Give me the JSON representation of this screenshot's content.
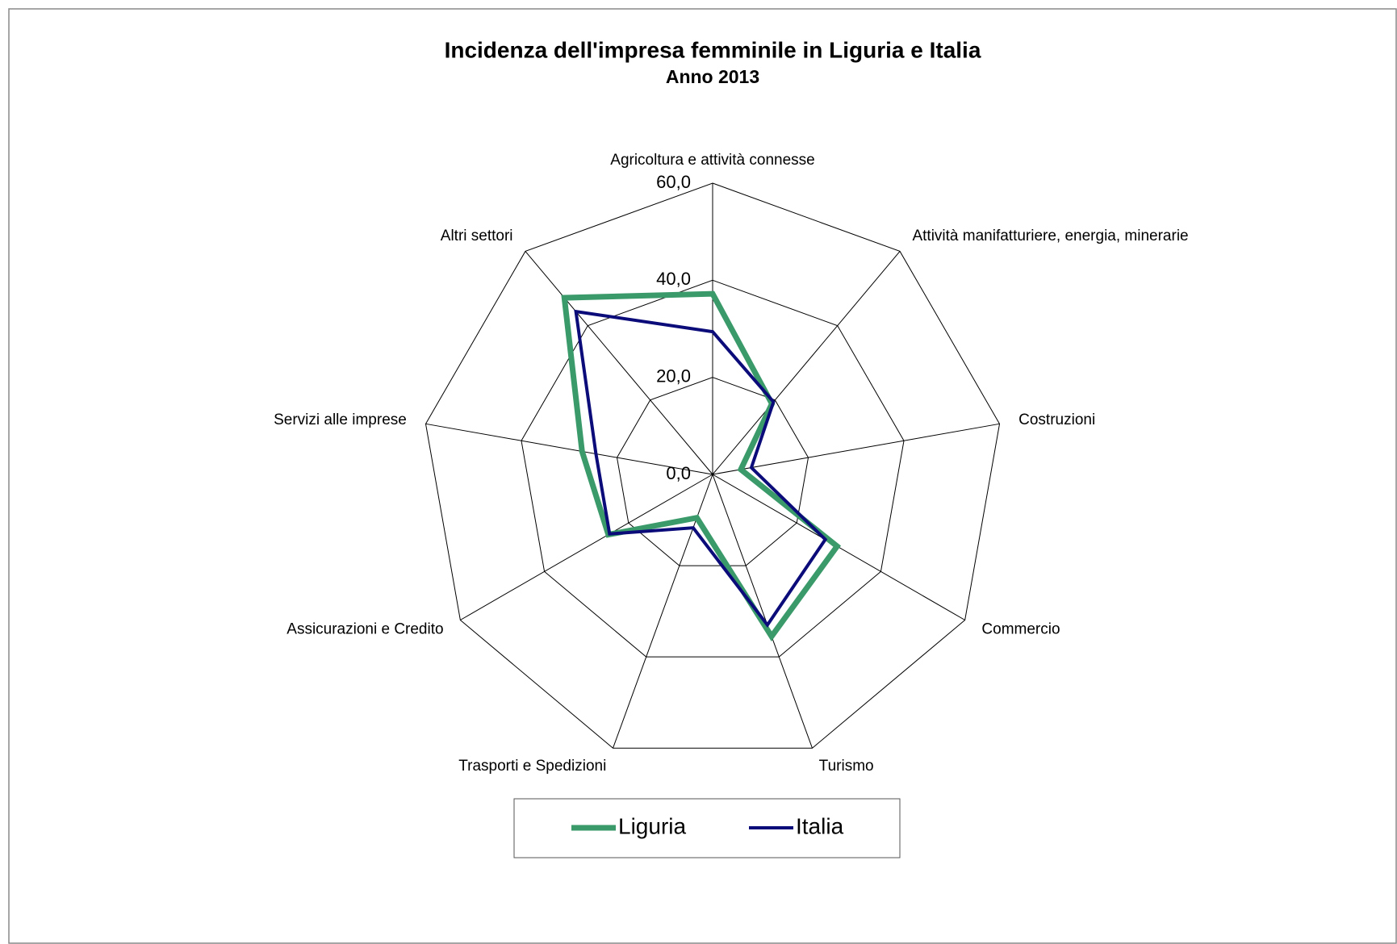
{
  "chart_data": {
    "type": "radar",
    "title": "Incidenza dell'impresa femminile in Liguria e Italia",
    "subtitle": "Anno 2013",
    "categories": [
      "Agricoltura e attività connesse",
      "Attività manifatturiere, energia, minerarie",
      "Costruzioni",
      "Commercio",
      "Turismo",
      "Trasporti e Spedizioni",
      "Assicurazioni e Credito",
      "Servizi alle imprese",
      "Altri settori"
    ],
    "series": [
      {
        "name": "Liguria",
        "color": "#3a9a6a",
        "values": [
          37.2,
          19.0,
          5.9,
          29.6,
          35.5,
          9.5,
          24.8,
          27.3,
          47.5
        ]
      },
      {
        "name": "Italia",
        "color": "#0b0b7a",
        "values": [
          29.4,
          19.5,
          8.1,
          26.8,
          33.0,
          11.7,
          24.5,
          24.4,
          43.8
        ]
      }
    ],
    "ylim": [
      0,
      60
    ],
    "yticks": [
      {
        "value": 0,
        "label": "0,0"
      },
      {
        "value": 20,
        "label": "20,0"
      },
      {
        "value": 40,
        "label": "40,0"
      },
      {
        "value": 60,
        "label": "60,0"
      }
    ],
    "grid": true,
    "legend": "bottom"
  }
}
